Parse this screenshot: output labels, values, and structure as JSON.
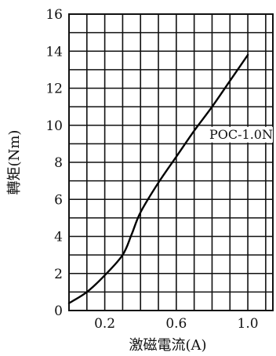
{
  "chart_data": {
    "type": "line",
    "title": "",
    "xlabel": "激磁電流(A)",
    "ylabel": "轉矩(Nm)",
    "xlim": [
      0,
      1.14
    ],
    "ylim": [
      0,
      16
    ],
    "x_ticks": [
      {
        "value": 0.2,
        "label": "0.2"
      },
      {
        "value": 0.6,
        "label": "0.6"
      },
      {
        "value": 1.0,
        "label": "1.0"
      }
    ],
    "y_ticks": [
      {
        "value": 0,
        "label": "0"
      },
      {
        "value": 2,
        "label": "2"
      },
      {
        "value": 4,
        "label": "4"
      },
      {
        "value": 6,
        "label": "6"
      },
      {
        "value": 8,
        "label": "8"
      },
      {
        "value": 10,
        "label": "10"
      },
      {
        "value": 12,
        "label": "12"
      },
      {
        "value": 14,
        "label": "14"
      },
      {
        "value": 16,
        "label": "16"
      }
    ],
    "grid": true,
    "series": [
      {
        "name": "POC-1.0N",
        "x": [
          0.0,
          0.1,
          0.2,
          0.3,
          0.35,
          0.4,
          0.5,
          0.6,
          0.7,
          0.8,
          0.9,
          1.0
        ],
        "y": [
          0.4,
          1.0,
          1.9,
          3.0,
          4.1,
          5.3,
          6.9,
          8.3,
          9.7,
          11.0,
          12.4,
          13.8
        ]
      }
    ]
  }
}
